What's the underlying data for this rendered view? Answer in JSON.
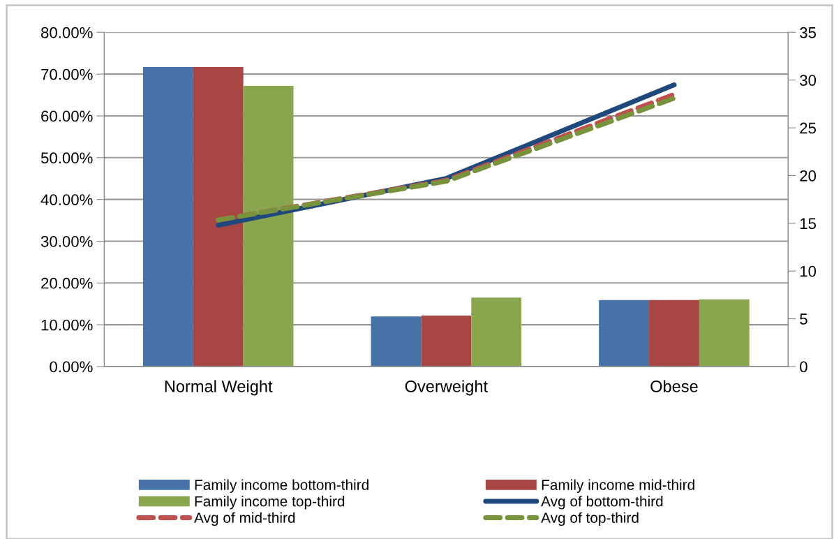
{
  "chart_data": {
    "type": "bar",
    "categories": [
      "Normal Weight",
      "Overweight",
      "Obese"
    ],
    "ylim": [
      0,
      80
    ],
    "yticks": [
      {
        "value": 0,
        "label": "0.00%"
      },
      {
        "value": 10,
        "label": "10.00%"
      },
      {
        "value": 20,
        "label": "20.00%"
      },
      {
        "value": 30,
        "label": "30.00%"
      },
      {
        "value": 40,
        "label": "40.00%"
      },
      {
        "value": 50,
        "label": "50.00%"
      },
      {
        "value": 60,
        "label": "60.00%"
      },
      {
        "value": 70,
        "label": "70.00%"
      },
      {
        "value": 80,
        "label": "80.00%"
      }
    ],
    "y2lim": [
      0,
      35
    ],
    "y2ticks": [
      0,
      5,
      10,
      15,
      20,
      25,
      30,
      35
    ],
    "grid": "y",
    "legend": "bottom",
    "series": [
      {
        "name": "Family income bottom-third",
        "color": "#4672a8",
        "values": [
          71.7,
          12.0,
          15.9
        ]
      },
      {
        "name": "Family income mid-third",
        "color": "#a84644",
        "values": [
          71.7,
          12.2,
          15.9
        ]
      },
      {
        "name": "Family income top-third",
        "color": "#89a54e",
        "values": [
          67.2,
          16.5,
          16.1
        ]
      },
      {
        "name": "Avg of bottom-third",
        "type": "line",
        "axis": "y2",
        "color": "#1f497d",
        "line_style": "solid",
        "values": [
          14.8,
          19.7,
          29.5
        ]
      },
      {
        "name": "Avg of mid-third",
        "type": "line",
        "axis": "y2",
        "color": "#c0504d",
        "line_style": "dashed",
        "values": [
          15.35,
          19.5,
          28.5
        ]
      },
      {
        "name": "Avg of top-third",
        "type": "line",
        "axis": "y2",
        "color": "#77933c",
        "line_style": "dashed",
        "values": [
          15.35,
          19.4,
          28.1
        ]
      }
    ]
  }
}
